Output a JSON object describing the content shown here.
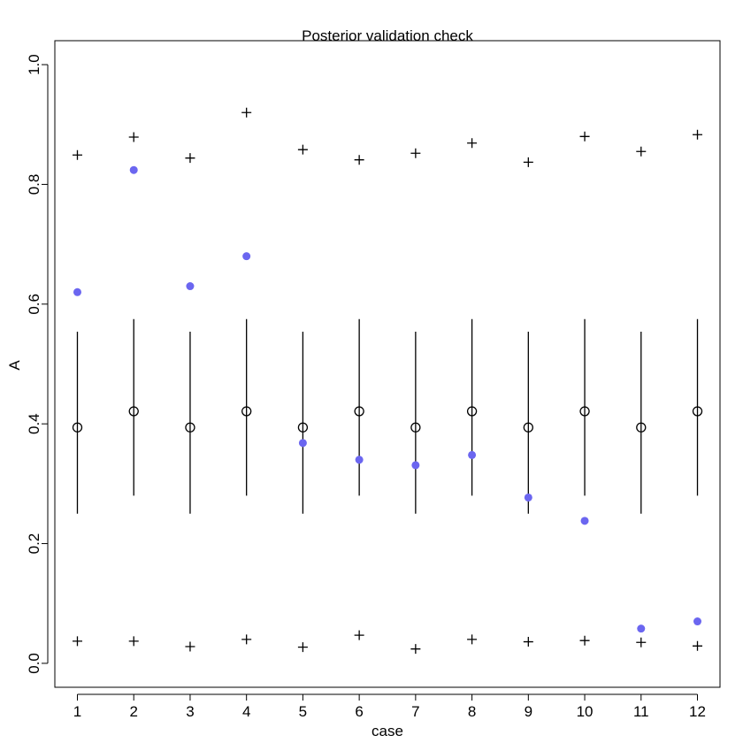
{
  "chart_data": {
    "type": "scatter",
    "title": "Posterior validation check",
    "xlabel": "case",
    "ylabel": "A",
    "xlim": [
      0.6,
      12.4
    ],
    "ylim": [
      -0.04,
      1.04
    ],
    "x_ticks": [
      1,
      2,
      3,
      4,
      5,
      6,
      7,
      8,
      9,
      10,
      11,
      12
    ],
    "x_tick_labels": [
      "1",
      "2",
      "3",
      "4",
      "5",
      "6",
      "7",
      "8",
      "9",
      "10",
      "11",
      "12"
    ],
    "y_ticks": [
      0.0,
      0.2,
      0.4,
      0.6,
      0.8,
      1.0
    ],
    "y_tick_labels": [
      "0.0",
      "0.2",
      "0.4",
      "0.6",
      "0.8",
      "1.0"
    ],
    "grid": false,
    "legend": "none",
    "series": [
      {
        "marker": "filled-circle",
        "color": "#6b66f0",
        "x": [
          1,
          2,
          3,
          4,
          5,
          6,
          7,
          8,
          9,
          10,
          11,
          12
        ],
        "y": [
          0.62,
          0.824,
          0.63,
          0.68,
          0.368,
          0.34,
          0.331,
          0.348,
          0.277,
          0.238,
          0.058,
          0.07
        ]
      },
      {
        "marker": "open-circle",
        "color": "#000000",
        "x": [
          1,
          2,
          3,
          4,
          5,
          6,
          7,
          8,
          9,
          10,
          11,
          12
        ],
        "y": [
          0.394,
          0.421,
          0.394,
          0.421,
          0.394,
          0.421,
          0.394,
          0.421,
          0.394,
          0.421,
          0.394,
          0.421
        ]
      },
      {
        "marker": "interval",
        "color": "#000000",
        "x": [
          1,
          2,
          3,
          4,
          5,
          6,
          7,
          8,
          9,
          10,
          11,
          12
        ],
        "low": [
          0.25,
          0.28,
          0.25,
          0.28,
          0.25,
          0.28,
          0.25,
          0.28,
          0.25,
          0.28,
          0.25,
          0.28
        ],
        "high": [
          0.554,
          0.575,
          0.554,
          0.575,
          0.554,
          0.575,
          0.554,
          0.575,
          0.554,
          0.575,
          0.554,
          0.575
        ]
      },
      {
        "marker": "plus",
        "color": "#000000",
        "x": [
          1,
          2,
          3,
          4,
          5,
          6,
          7,
          8,
          9,
          10,
          11,
          12
        ],
        "y": [
          0.849,
          0.879,
          0.844,
          0.92,
          0.858,
          0.841,
          0.852,
          0.869,
          0.837,
          0.88,
          0.855,
          0.883
        ]
      },
      {
        "marker": "plus",
        "color": "#000000",
        "x": [
          1,
          2,
          3,
          4,
          5,
          6,
          7,
          8,
          9,
          10,
          11,
          12
        ],
        "y": [
          0.037,
          0.037,
          0.028,
          0.04,
          0.027,
          0.047,
          0.024,
          0.04,
          0.036,
          0.038,
          0.035,
          0.029
        ]
      }
    ]
  }
}
